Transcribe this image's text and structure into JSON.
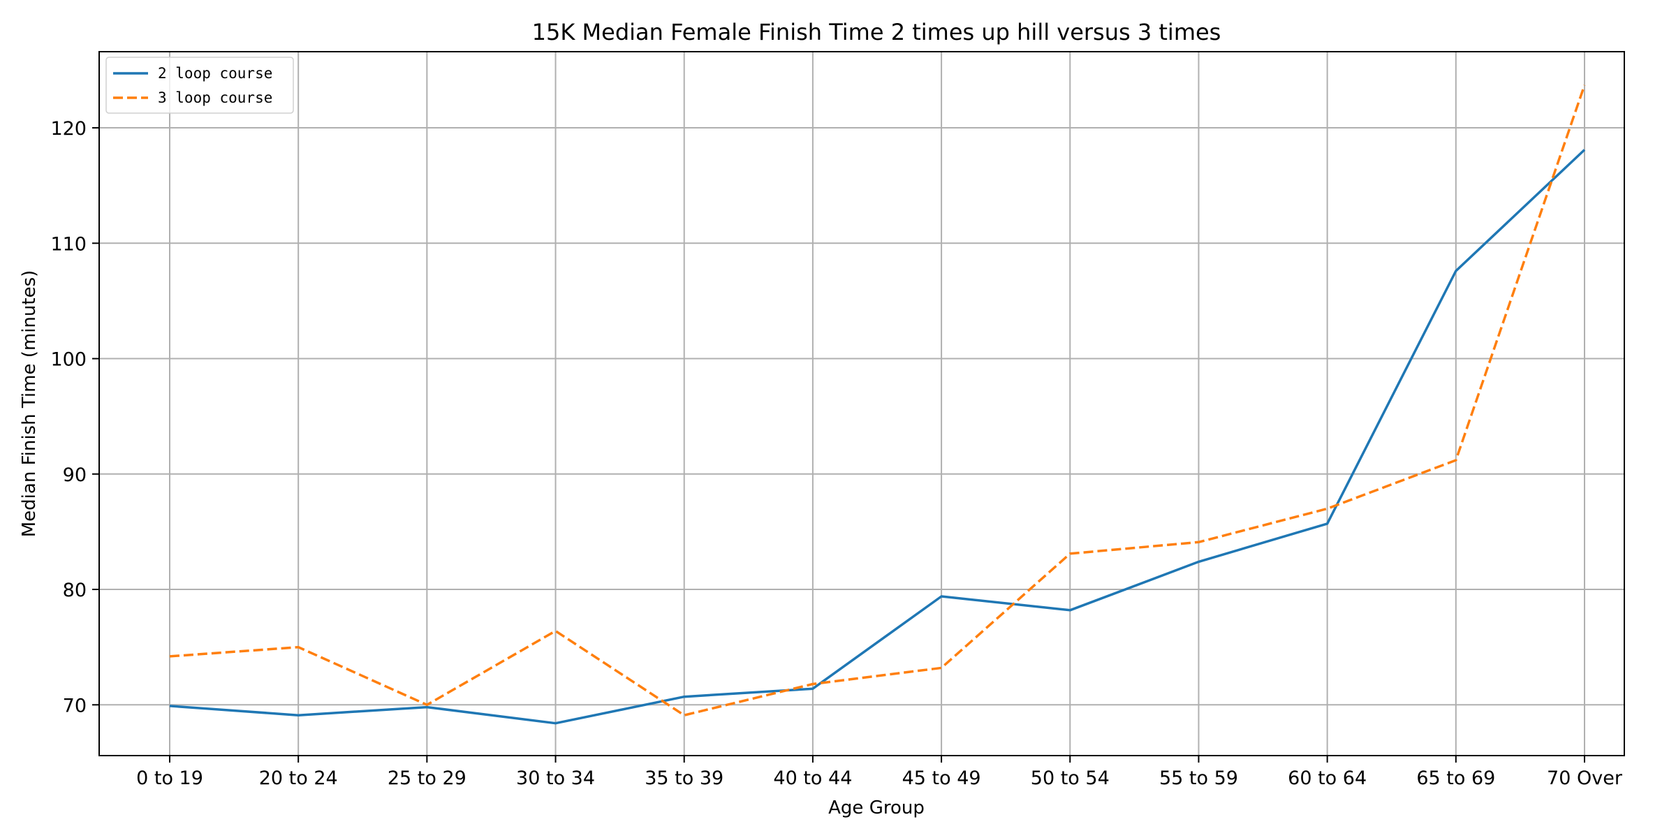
{
  "chart_data": {
    "type": "line",
    "title": "15K Median Female Finish Time 2 times up hill versus 3 times",
    "xlabel": "Age Group",
    "ylabel": "Median Finish Time (minutes)",
    "categories": [
      "0 to 19",
      "20 to 24",
      "25 to 29",
      "30 to 34",
      "35 to 39",
      "40 to 44",
      "45 to 49",
      "50 to 54",
      "55 to 59",
      "60 to 64",
      "65 to 69",
      "70 Over"
    ],
    "series": [
      {
        "name": "2 loop course",
        "color": "#1f77b4",
        "dash": "solid",
        "values": [
          69.9,
          69.1,
          69.8,
          68.4,
          70.7,
          71.4,
          79.4,
          78.2,
          82.4,
          85.7,
          107.6,
          118.1
        ]
      },
      {
        "name": "3 loop course",
        "color": "#ff7f0e",
        "dash": "dashed",
        "values": [
          74.2,
          75.0,
          70.0,
          76.4,
          69.1,
          71.8,
          73.2,
          83.1,
          84.1,
          87.0,
          91.2,
          123.7
        ]
      }
    ],
    "yticks": [
      70,
      80,
      90,
      100,
      110,
      120
    ],
    "ylim": [
      65.6,
      126.6
    ],
    "grid": true,
    "legend": "top-left"
  }
}
